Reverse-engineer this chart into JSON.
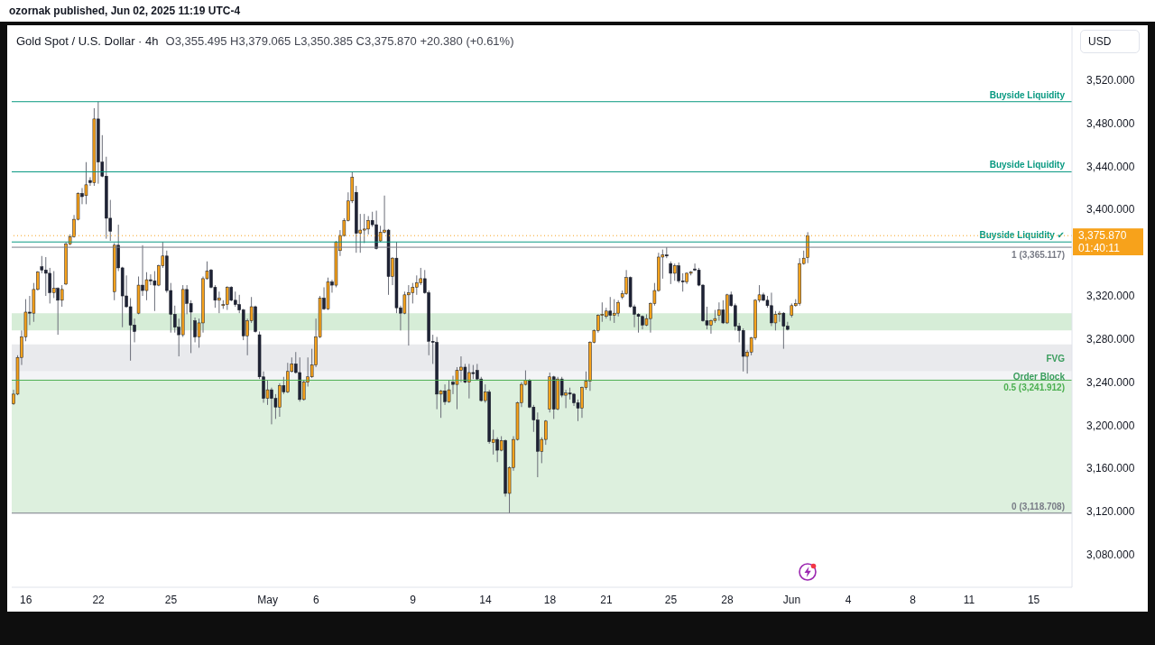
{
  "chart_data": {
    "type": "candlestick",
    "title": "Gold Spot / U.S. Dollar · 4h",
    "subtitle": "O3,355.495 H3,379.065 L3,350.385 C3,375.870 +20.380 (+0.61%)",
    "ylabel": "USD",
    "annotations": [
      "ozornak published, Jun 02, 2025 11:19 UTC-4",
      "01:40:11"
    ],
    "categories": [
      null,
      null,
      null,
      "16",
      null,
      null,
      null,
      null,
      null,
      null,
      null,
      null,
      null,
      null,
      null,
      null,
      null,
      null,
      null,
      null,
      null,
      "22",
      null,
      null,
      null,
      null,
      null,
      null,
      null,
      null,
      null,
      null,
      null,
      null,
      null,
      null,
      null,
      null,
      null,
      "25",
      null,
      null,
      null,
      null,
      null,
      null,
      null,
      null,
      null,
      null,
      null,
      null,
      null,
      null,
      null,
      null,
      null,
      null,
      null,
      null,
      null,
      null,
      null,
      "May",
      null,
      null,
      null,
      null,
      null,
      null,
      null,
      null,
      null,
      null,
      null,
      "6",
      null,
      null,
      null,
      null,
      null,
      null,
      null,
      null,
      null,
      null,
      null,
      null,
      null,
      null,
      null,
      null,
      null,
      null,
      null,
      null,
      null,
      null,
      null,
      "9",
      null,
      null,
      null,
      null,
      null,
      null,
      null,
      null,
      null,
      null,
      null,
      null,
      null,
      null,
      null,
      null,
      null,
      "14",
      null,
      null,
      null,
      null,
      null,
      null,
      null,
      null,
      null,
      null,
      null,
      null,
      null,
      null,
      null,
      "18",
      null,
      null,
      null,
      null,
      null,
      null,
      null,
      null,
      null,
      null,
      null,
      null,
      null,
      "21",
      null,
      null,
      null,
      null,
      null,
      null,
      null,
      null,
      null,
      null,
      null,
      null,
      null,
      null,
      null,
      "25",
      null,
      null,
      null,
      null,
      null,
      null,
      null,
      null,
      null,
      null,
      null,
      null,
      null,
      "28",
      null,
      null,
      null,
      null,
      null,
      null,
      null,
      null,
      null,
      null,
      null,
      null,
      null,
      null,
      null,
      "Jun",
      null,
      null,
      null,
      null,
      null,
      null,
      null,
      null,
      null,
      null,
      null,
      null,
      null,
      "4",
      null,
      null,
      null,
      null,
      null,
      null,
      null,
      null,
      null,
      null,
      null,
      null,
      null,
      null,
      null,
      "8",
      null,
      null,
      null,
      null,
      null,
      null,
      null,
      null,
      null,
      null,
      null,
      null,
      null,
      "11",
      null,
      null,
      null,
      null,
      null,
      null,
      null,
      null,
      null,
      null,
      null,
      null,
      null,
      null,
      null,
      "15",
      null,
      null,
      null,
      null,
      null,
      null,
      null,
      null,
      null
    ],
    "ohlc": [
      [
        3220,
        3233,
        3219,
        3229
      ],
      [
        3229,
        3265,
        3228,
        3263
      ],
      [
        3263,
        3288,
        3256,
        3282
      ],
      [
        3282,
        3317,
        3278,
        3305
      ],
      [
        3305,
        3320,
        3293,
        3304
      ],
      [
        3304,
        3332,
        3296,
        3326
      ],
      [
        3326,
        3343,
        3325,
        3342
      ],
      [
        3347,
        3357,
        3341,
        3344
      ],
      [
        3344,
        3356,
        3320,
        3341
      ],
      [
        3341,
        3346,
        3313,
        3323
      ],
      [
        3323,
        3343,
        3318,
        3327
      ],
      [
        3327,
        3328,
        3284,
        3316
      ],
      [
        3316,
        3330,
        3310,
        3326
      ],
      [
        3331,
        3370,
        3330,
        3368
      ],
      [
        3368,
        3377,
        3367,
        3375
      ],
      [
        3375,
        3395,
        3374,
        3391
      ],
      [
        3391,
        3416,
        3390,
        3415
      ],
      [
        3415,
        3420,
        3405,
        3412
      ],
      [
        3413,
        3444,
        3405,
        3423
      ],
      [
        3427,
        3430,
        3422,
        3425
      ],
      [
        3425,
        3494,
        3422,
        3484
      ],
      [
        3484,
        3500,
        3424,
        3444
      ],
      [
        3444,
        3469,
        3430,
        3431
      ],
      [
        3431,
        3449,
        3373,
        3392
      ],
      [
        3392,
        3409,
        3371,
        3380
      ],
      [
        3324,
        3369,
        3316,
        3367
      ],
      [
        3367,
        3386,
        3343,
        3346
      ],
      [
        3346,
        3347,
        3291,
        3320
      ],
      [
        3320,
        3339,
        3309,
        3310
      ],
      [
        3310,
        3318,
        3260,
        3293
      ],
      [
        3293,
        3299,
        3277,
        3287
      ],
      [
        3304,
        3338,
        3303,
        3330
      ],
      [
        3330,
        3367,
        3320,
        3325
      ],
      [
        3325,
        3342,
        3316,
        3335
      ],
      [
        3335,
        3340,
        3330,
        3334
      ],
      [
        3334,
        3343,
        3306,
        3330
      ],
      [
        3330,
        3349,
        3329,
        3348
      ],
      [
        3348,
        3370,
        3346,
        3357
      ],
      [
        3357,
        3362,
        3323,
        3325
      ],
      [
        3325,
        3332,
        3286,
        3303
      ],
      [
        3303,
        3311,
        3286,
        3291
      ],
      [
        3291,
        3299,
        3264,
        3284
      ],
      [
        3284,
        3330,
        3282,
        3326
      ],
      [
        3326,
        3330,
        3303,
        3313
      ],
      [
        3313,
        3316,
        3267,
        3305
      ],
      [
        3297,
        3300,
        3277,
        3282
      ],
      [
        3282,
        3299,
        3272,
        3295
      ],
      [
        3295,
        3338,
        3286,
        3336
      ],
      [
        3336,
        3352,
        3335,
        3343
      ],
      [
        3344,
        3345,
        3327,
        3328
      ],
      [
        3328,
        3330,
        3309,
        3316
      ],
      [
        3316,
        3324,
        3304,
        3318
      ],
      [
        3311,
        3316,
        3308,
        3312
      ],
      [
        3312,
        3329,
        3307,
        3328
      ],
      [
        3328,
        3329,
        3315,
        3316
      ],
      [
        3316,
        3324,
        3310,
        3312
      ],
      [
        3312,
        3321,
        3304,
        3307
      ],
      [
        3307,
        3308,
        3279,
        3283
      ],
      [
        3283,
        3299,
        3265,
        3297
      ],
      [
        3297,
        3319,
        3295,
        3310
      ],
      [
        3310,
        3311,
        3286,
        3287
      ],
      [
        3284,
        3287,
        3243,
        3245
      ],
      [
        3245,
        3250,
        3221,
        3225
      ],
      [
        3225,
        3242,
        3219,
        3233
      ],
      [
        3233,
        3235,
        3201,
        3225
      ],
      [
        3225,
        3229,
        3206,
        3217
      ],
      [
        3217,
        3239,
        3208,
        3237
      ],
      [
        3237,
        3245,
        3229,
        3231
      ],
      [
        3231,
        3258,
        3230,
        3250
      ],
      [
        3250,
        3263,
        3249,
        3257
      ],
      [
        3257,
        3268,
        3248,
        3249
      ],
      [
        3249,
        3263,
        3222,
        3224
      ],
      [
        3224,
        3242,
        3223,
        3240
      ],
      [
        3240,
        3263,
        3236,
        3245
      ],
      [
        3245,
        3271,
        3244,
        3256
      ],
      [
        3256,
        3299,
        3254,
        3282
      ],
      [
        3282,
        3320,
        3281,
        3318
      ],
      [
        3318,
        3328,
        3307,
        3308
      ],
      [
        3308,
        3337,
        3307,
        3333
      ],
      [
        3333,
        3335,
        3323,
        3330
      ],
      [
        3330,
        3371,
        3328,
        3370
      ],
      [
        3362,
        3381,
        3357,
        3376
      ],
      [
        3376,
        3392,
        3375,
        3390
      ],
      [
        3390,
        3416,
        3389,
        3408
      ],
      [
        3408,
        3435,
        3406,
        3430
      ],
      [
        3416,
        3422,
        3360,
        3378
      ],
      [
        3378,
        3396,
        3360,
        3381
      ],
      [
        3381,
        3396,
        3369,
        3382
      ],
      [
        3382,
        3394,
        3377,
        3390
      ],
      [
        3390,
        3398,
        3384,
        3386
      ],
      [
        3386,
        3399,
        3363,
        3364
      ],
      [
        3371,
        3385,
        3370,
        3379
      ],
      [
        3379,
        3413,
        3378,
        3381
      ],
      [
        3381,
        3382,
        3321,
        3338
      ],
      [
        3338,
        3356,
        3330,
        3355
      ],
      [
        3355,
        3370,
        3304,
        3309
      ],
      [
        3309,
        3311,
        3288,
        3304
      ],
      [
        3304,
        3324,
        3303,
        3321
      ],
      [
        3321,
        3330,
        3274,
        3323
      ],
      [
        3323,
        3332,
        3313,
        3328
      ],
      [
        3328,
        3339,
        3321,
        3332
      ],
      [
        3332,
        3346,
        3330,
        3336
      ],
      [
        3336,
        3344,
        3322,
        3323
      ],
      [
        3323,
        3325,
        3265,
        3278
      ],
      [
        3278,
        3284,
        3257,
        3277
      ],
      [
        3277,
        3282,
        3215,
        3229
      ],
      [
        3229,
        3233,
        3207,
        3232
      ],
      [
        3232,
        3238,
        3219,
        3222
      ],
      [
        3222,
        3242,
        3221,
        3233
      ],
      [
        3240,
        3246,
        3229,
        3238
      ],
      [
        3238,
        3254,
        3215,
        3251
      ],
      [
        3251,
        3264,
        3240,
        3254
      ],
      [
        3254,
        3257,
        3239,
        3240
      ],
      [
        3240,
        3257,
        3225,
        3249
      ],
      [
        3249,
        3256,
        3243,
        3248
      ],
      [
        3251,
        3257,
        3242,
        3243
      ],
      [
        3243,
        3245,
        3222,
        3223
      ],
      [
        3223,
        3238,
        3221,
        3231
      ],
      [
        3231,
        3233,
        3183,
        3185
      ],
      [
        3184,
        3196,
        3173,
        3187
      ],
      [
        3187,
        3189,
        3166,
        3177
      ],
      [
        3177,
        3190,
        3176,
        3186
      ],
      [
        3186,
        3187,
        3134,
        3137
      ],
      [
        3137,
        3162,
        3118.708,
        3161
      ],
      [
        3161,
        3190,
        3158,
        3187
      ],
      [
        3187,
        3222,
        3186,
        3221
      ],
      [
        3221,
        3240,
        3217,
        3238
      ],
      [
        3238,
        3251,
        3237,
        3242
      ],
      [
        3242,
        3243,
        3216,
        3217
      ],
      [
        3217,
        3219,
        3194,
        3205
      ],
      [
        3205,
        3212,
        3152,
        3176
      ],
      [
        3176,
        3189,
        3165,
        3187
      ],
      [
        3187,
        3205,
        3182,
        3204
      ],
      [
        3215,
        3249,
        3212,
        3245
      ],
      [
        3245,
        3246,
        3206,
        3215
      ],
      [
        3215,
        3245,
        3214,
        3243
      ],
      [
        3243,
        3245,
        3226,
        3228
      ],
      [
        3228,
        3233,
        3216,
        3230
      ],
      [
        3230,
        3235,
        3224,
        3229
      ],
      [
        3229,
        3230,
        3218,
        3221
      ],
      [
        3221,
        3224,
        3204,
        3216
      ],
      [
        3216,
        3236,
        3207,
        3235
      ],
      [
        3235,
        3250,
        3233,
        3241
      ],
      [
        3241,
        3278,
        3232,
        3277
      ],
      [
        3277,
        3289,
        3276,
        3288
      ],
      [
        3288,
        3303,
        3286,
        3302
      ],
      [
        3302,
        3314,
        3296,
        3303
      ],
      [
        3301,
        3309,
        3299,
        3306
      ],
      [
        3306,
        3319,
        3297,
        3302
      ],
      [
        3302,
        3317,
        3295,
        3304
      ],
      [
        3304,
        3316,
        3301,
        3314
      ],
      [
        3319,
        3325,
        3317,
        3322
      ],
      [
        3322,
        3344,
        3321,
        3337
      ],
      [
        3337,
        3338,
        3309,
        3310
      ],
      [
        3310,
        3312,
        3291,
        3303
      ],
      [
        3303,
        3304,
        3286,
        3301
      ],
      [
        3301,
        3302,
        3289,
        3293
      ],
      [
        3293,
        3303,
        3292,
        3299
      ],
      [
        3299,
        3314,
        3286,
        3313
      ],
      [
        3313,
        3332,
        3311,
        3325
      ],
      [
        3325,
        3360,
        3324,
        3356
      ],
      [
        3356,
        3363,
        3336,
        3358
      ],
      [
        3358,
        3365.117,
        3355,
        3357
      ],
      [
        3350,
        3352,
        3331,
        3341
      ],
      [
        3341,
        3350,
        3334,
        3348
      ],
      [
        3348,
        3351,
        3332,
        3334
      ],
      [
        3334,
        3341,
        3324,
        3333
      ],
      [
        3333,
        3342,
        3331,
        3341
      ],
      [
        3341,
        3343,
        3339,
        3342
      ],
      [
        3345,
        3350,
        3343,
        3344
      ],
      [
        3344,
        3346,
        3329,
        3330
      ],
      [
        3330,
        3331,
        3296,
        3297
      ],
      [
        3297,
        3310,
        3289,
        3293
      ],
      [
        3293,
        3298,
        3285,
        3297
      ],
      [
        3297,
        3307,
        3295,
        3299
      ],
      [
        3302,
        3314,
        3297,
        3307
      ],
      [
        3307,
        3316,
        3294,
        3295
      ],
      [
        3295,
        3322,
        3294,
        3321
      ],
      [
        3321,
        3324,
        3310,
        3311
      ],
      [
        3311,
        3313,
        3288,
        3292
      ],
      [
        3292,
        3295,
        3277,
        3288
      ],
      [
        3288,
        3290,
        3250,
        3264
      ],
      [
        3264,
        3270,
        3248,
        3268
      ],
      [
        3268,
        3282,
        3265,
        3281
      ],
      [
        3281,
        3317,
        3279,
        3316
      ],
      [
        3316,
        3330,
        3314,
        3321
      ],
      [
        3321,
        3323,
        3315,
        3316
      ],
      [
        3316,
        3320,
        3309,
        3311
      ],
      [
        3311,
        3323,
        3292,
        3295
      ],
      [
        3295,
        3306,
        3288,
        3303
      ],
      [
        3303,
        3306,
        3296,
        3304
      ],
      [
        3304,
        3305,
        3271,
        3292
      ],
      [
        3292,
        3296,
        3288,
        3289
      ],
      [
        3302,
        3313,
        3300,
        3311
      ],
      [
        3311,
        3317,
        3310,
        3313
      ],
      [
        3313,
        3355,
        3311,
        3350
      ],
      [
        3350,
        3362,
        3349,
        3355
      ],
      [
        3355.495,
        3379.065,
        3350.385,
        3375.87
      ],
      null,
      null,
      null,
      null,
      null,
      null,
      null,
      null,
      null,
      null,
      null,
      null,
      null,
      null,
      null,
      null,
      null,
      null,
      null,
      null,
      null,
      null,
      null,
      null,
      null,
      null,
      null,
      null,
      null,
      null,
      null,
      null,
      null,
      null,
      null,
      null,
      null,
      null,
      null,
      null,
      null,
      null,
      null,
      null,
      null,
      null,
      null,
      null,
      null,
      null,
      null,
      null,
      null,
      null,
      null,
      null,
      null,
      null,
      null,
      null,
      null,
      null,
      null,
      null,
      null
    ],
    "colors": [
      "#f7a21b",
      "#f7a21b",
      "#f7a21b",
      "#f7a21b",
      "#1e2235",
      "#f7a21b",
      "#f7a21b",
      "#1e2235",
      "#1e2235",
      "#1e2235",
      "#f7a21b",
      "#1e2235",
      "#f7a21b",
      "#f7a21b",
      "#f7a21b",
      "#f7a21b",
      "#f7a21b",
      "#1e2235",
      "#f7a21b",
      "#1e2235",
      "#f7a21b",
      "#1e2235",
      "#1e2235",
      "#1e2235",
      "#1e2235",
      "#f7a21b",
      "#1e2235",
      "#1e2235",
      "#1e2235",
      "#1e2235",
      "#1e2235",
      "#f7a21b",
      "#1e2235",
      "#f7a21b",
      "#1e2235",
      "#1e2235",
      "#f7a21b",
      "#f7a21b",
      "#1e2235",
      "#1e2235",
      "#1e2235",
      "#1e2235",
      "#f7a21b",
      "#1e2235",
      "#1e2235",
      "#1e2235",
      "#f7a21b",
      "#f7a21b",
      "#f7a21b",
      "#1e2235",
      "#1e2235",
      "#f7a21b",
      "#f7a21b",
      "#f7a21b",
      "#1e2235",
      "#1e2235",
      "#1e2235",
      "#1e2235",
      "#f7a21b",
      "#f7a21b",
      "#1e2235",
      "#1e2235",
      "#1e2235",
      "#f7a21b",
      "#1e2235",
      "#1e2235",
      "#f7a21b",
      "#1e2235",
      "#f7a21b",
      "#f7a21b",
      "#1e2235",
      "#1e2235",
      "#f7a21b",
      "#f7a21b",
      "#f7a21b",
      "#f7a21b",
      "#f7a21b",
      "#1e2235",
      "#f7a21b",
      "#1e2235",
      "#f7a21b",
      "#f7a21b",
      "#f7a21b",
      "#f7a21b",
      "#f7a21b",
      "#1e2235",
      "#f7a21b",
      "#f7a21b",
      "#f7a21b",
      "#1e2235",
      "#1e2235",
      "#f7a21b",
      "#f7a21b",
      "#1e2235",
      "#f7a21b",
      "#1e2235",
      "#1e2235",
      "#f7a21b",
      "#f7a21b",
      "#f7a21b",
      "#f7a21b",
      "#f7a21b",
      "#1e2235",
      "#1e2235",
      "#1e2235",
      "#1e2235",
      "#f7a21b",
      "#1e2235",
      "#f7a21b",
      "#1e2235",
      "#f7a21b",
      "#f7a21b",
      "#1e2235",
      "#f7a21b",
      "#1e2235",
      "#1e2235",
      "#1e2235",
      "#f7a21b",
      "#1e2235",
      "#f7a21b",
      "#1e2235",
      "#f7a21b",
      "#1e2235",
      "#f7a21b",
      "#f7a21b",
      "#f7a21b",
      "#f7a21b",
      "#f7a21b",
      "#1e2235",
      "#1e2235",
      "#1e2235",
      "#f7a21b",
      "#f7a21b",
      "#f7a21b",
      "#1e2235",
      "#f7a21b",
      "#1e2235",
      "#f7a21b",
      "#1e2235",
      "#1e2235",
      "#1e2235",
      "#f7a21b",
      "#f7a21b",
      "#f7a21b",
      "#f7a21b",
      "#f7a21b",
      "#f7a21b",
      "#f7a21b",
      "#1e2235",
      "#f7a21b",
      "#f7a21b",
      "#f7a21b",
      "#f7a21b",
      "#1e2235",
      "#1e2235",
      "#1e2235",
      "#1e2235",
      "#f7a21b",
      "#f7a21b",
      "#f7a21b",
      "#f7a21b",
      "#f7a21b",
      "#1e2235",
      "#1e2235",
      "#f7a21b",
      "#1e2235",
      "#1e2235",
      "#f7a21b",
      "#f7a21b",
      "#1e2235",
      "#1e2235",
      "#1e2235",
      "#1e2235",
      "#f7a21b",
      "#f7a21b",
      "#f7a21b",
      "#1e2235",
      "#f7a21b",
      "#1e2235",
      "#1e2235",
      "#1e2235",
      "#1e2235",
      "#f7a21b",
      "#f7a21b",
      "#f7a21b",
      "#f7a21b",
      "#1e2235",
      "#1e2235",
      "#1e2235",
      "#f7a21b",
      "#f7a21b",
      "#1e2235",
      "#1e2235",
      "#f7a21b",
      "#f7a21b",
      "#f7a21b",
      "#f7a21b",
      "#f7a21b",
      null,
      null,
      null,
      null,
      null,
      null,
      null,
      null,
      null,
      null,
      null,
      null,
      null,
      null,
      null,
      null,
      null,
      null,
      null,
      null,
      null,
      null,
      null,
      null,
      null,
      null,
      null,
      null,
      null,
      null,
      null,
      null,
      null,
      null,
      null,
      null,
      null,
      null,
      null,
      null,
      null,
      null,
      null,
      null,
      null,
      null,
      null,
      null,
      null,
      null,
      null,
      null,
      null,
      null,
      null,
      null,
      null,
      null,
      null,
      null,
      null,
      null,
      null,
      null,
      null
    ],
    "ylim": [
      3050,
      3570
    ],
    "yticks": [
      {
        "value": 3080,
        "label": "3,080.000"
      },
      {
        "value": 3120,
        "label": "3,120.000"
      },
      {
        "value": 3160,
        "label": "3,160.000"
      },
      {
        "value": 3200,
        "label": "3,200.000"
      },
      {
        "value": 3240,
        "label": "3,240.000"
      },
      {
        "value": 3280,
        "label": "3,280.000"
      },
      {
        "value": 3320,
        "label": "3,320.000"
      },
      {
        "value": 3400,
        "label": "3,400.000"
      },
      {
        "value": 3440,
        "label": "3,440.000"
      },
      {
        "value": 3480,
        "label": "3,480.000"
      },
      {
        "value": 3520,
        "label": "3,520.000"
      }
    ],
    "ref_lines": [
      {
        "axis": "y",
        "value": 3500,
        "label": "Buyside Liquidity",
        "color": "#089981"
      },
      {
        "axis": "y",
        "value": 3435,
        "label": "Buyside Liquidity",
        "color": "#089981"
      },
      {
        "axis": "y",
        "value": 3370,
        "label": "Buyside Liquidity ✔",
        "color": "#089981"
      },
      {
        "axis": "y",
        "value": 3365.117,
        "label": "1 (3,365.117)",
        "color": "#787b86"
      },
      {
        "axis": "y",
        "value": 3241.912,
        "label": "0.5 (3,241.912)",
        "color": "#4caf50"
      },
      {
        "axis": "y",
        "value": 3118.708,
        "label": "0 (3,118.708)",
        "color": "#787b86"
      },
      {
        "axis": "y",
        "value": 3375.87,
        "label": "3,375.870",
        "color": "#f7a21b",
        "line_style": "dotted"
      }
    ],
    "bands": [
      {
        "axis": "y",
        "from": 3288,
        "to": 3304,
        "color": "#d6edd7"
      },
      {
        "axis": "y",
        "from": 3250,
        "to": 3275,
        "label": "FVG",
        "color": "#e9eaed"
      },
      {
        "axis": "y",
        "from": 3242,
        "to": 3250,
        "label": "Order Block",
        "color": "#f3f4f6"
      },
      {
        "axis": "y",
        "from": 3118.708,
        "to": 3241.912,
        "color": "#ddf0de"
      }
    ]
  }
}
